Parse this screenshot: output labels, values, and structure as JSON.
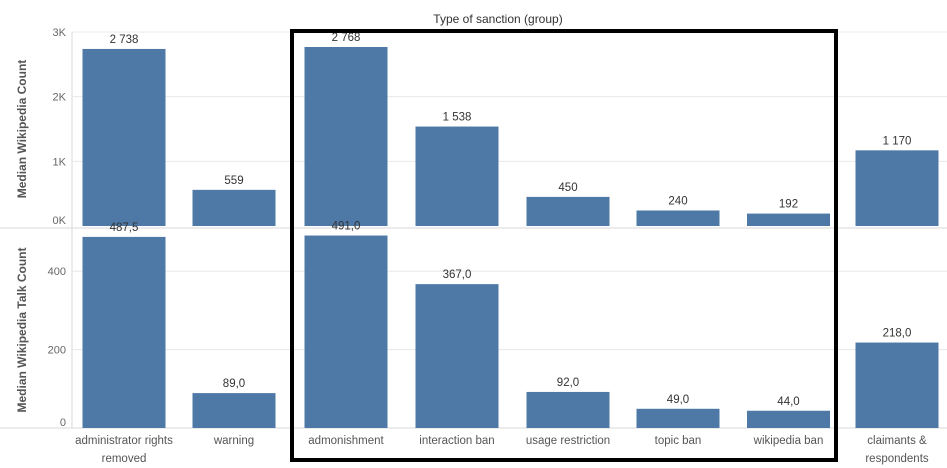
{
  "header": {
    "title": "Type of sanction (group)"
  },
  "chart_data": {
    "type": "bar",
    "title": "Type of sanction (group)",
    "categories": [
      [
        "administrator rights",
        "removed"
      ],
      [
        "warning"
      ],
      [
        "admonishment"
      ],
      [
        "interaction ban"
      ],
      [
        "usage restriction"
      ],
      [
        "topic ban"
      ],
      [
        "wikipedia ban"
      ],
      [
        "claimants &",
        "respondents"
      ]
    ],
    "series": [
      {
        "name": "Median Wikipedia Count",
        "values": [
          2738,
          559,
          2768,
          1538,
          450,
          240,
          192,
          1170
        ],
        "labels": [
          "2 738",
          "559",
          "2 768",
          "1 538",
          "450",
          "240",
          "192",
          "1 170"
        ],
        "ylim": [
          0,
          3000
        ],
        "yticks": [
          0,
          1000,
          2000,
          3000
        ],
        "ytick_labels": [
          "0K",
          "1K",
          "2K",
          "3K"
        ]
      },
      {
        "name": "Median Wikipedia Talk Count",
        "values": [
          487.5,
          89.0,
          491.0,
          367.0,
          92.0,
          49.0,
          44.0,
          218.0
        ],
        "labels": [
          "487,5",
          "89,0",
          "491,0",
          "367,0",
          "92,0",
          "49,0",
          "44,0",
          "218,0"
        ],
        "ylim": [
          0,
          500
        ],
        "yticks": [
          0,
          200,
          400
        ],
        "ytick_labels": [
          "0",
          "200",
          "400"
        ]
      }
    ],
    "highlight": {
      "from_category": 2,
      "to_category": 6,
      "style": "black box outline"
    },
    "grid": true,
    "bar_color": "#4e79a7"
  }
}
